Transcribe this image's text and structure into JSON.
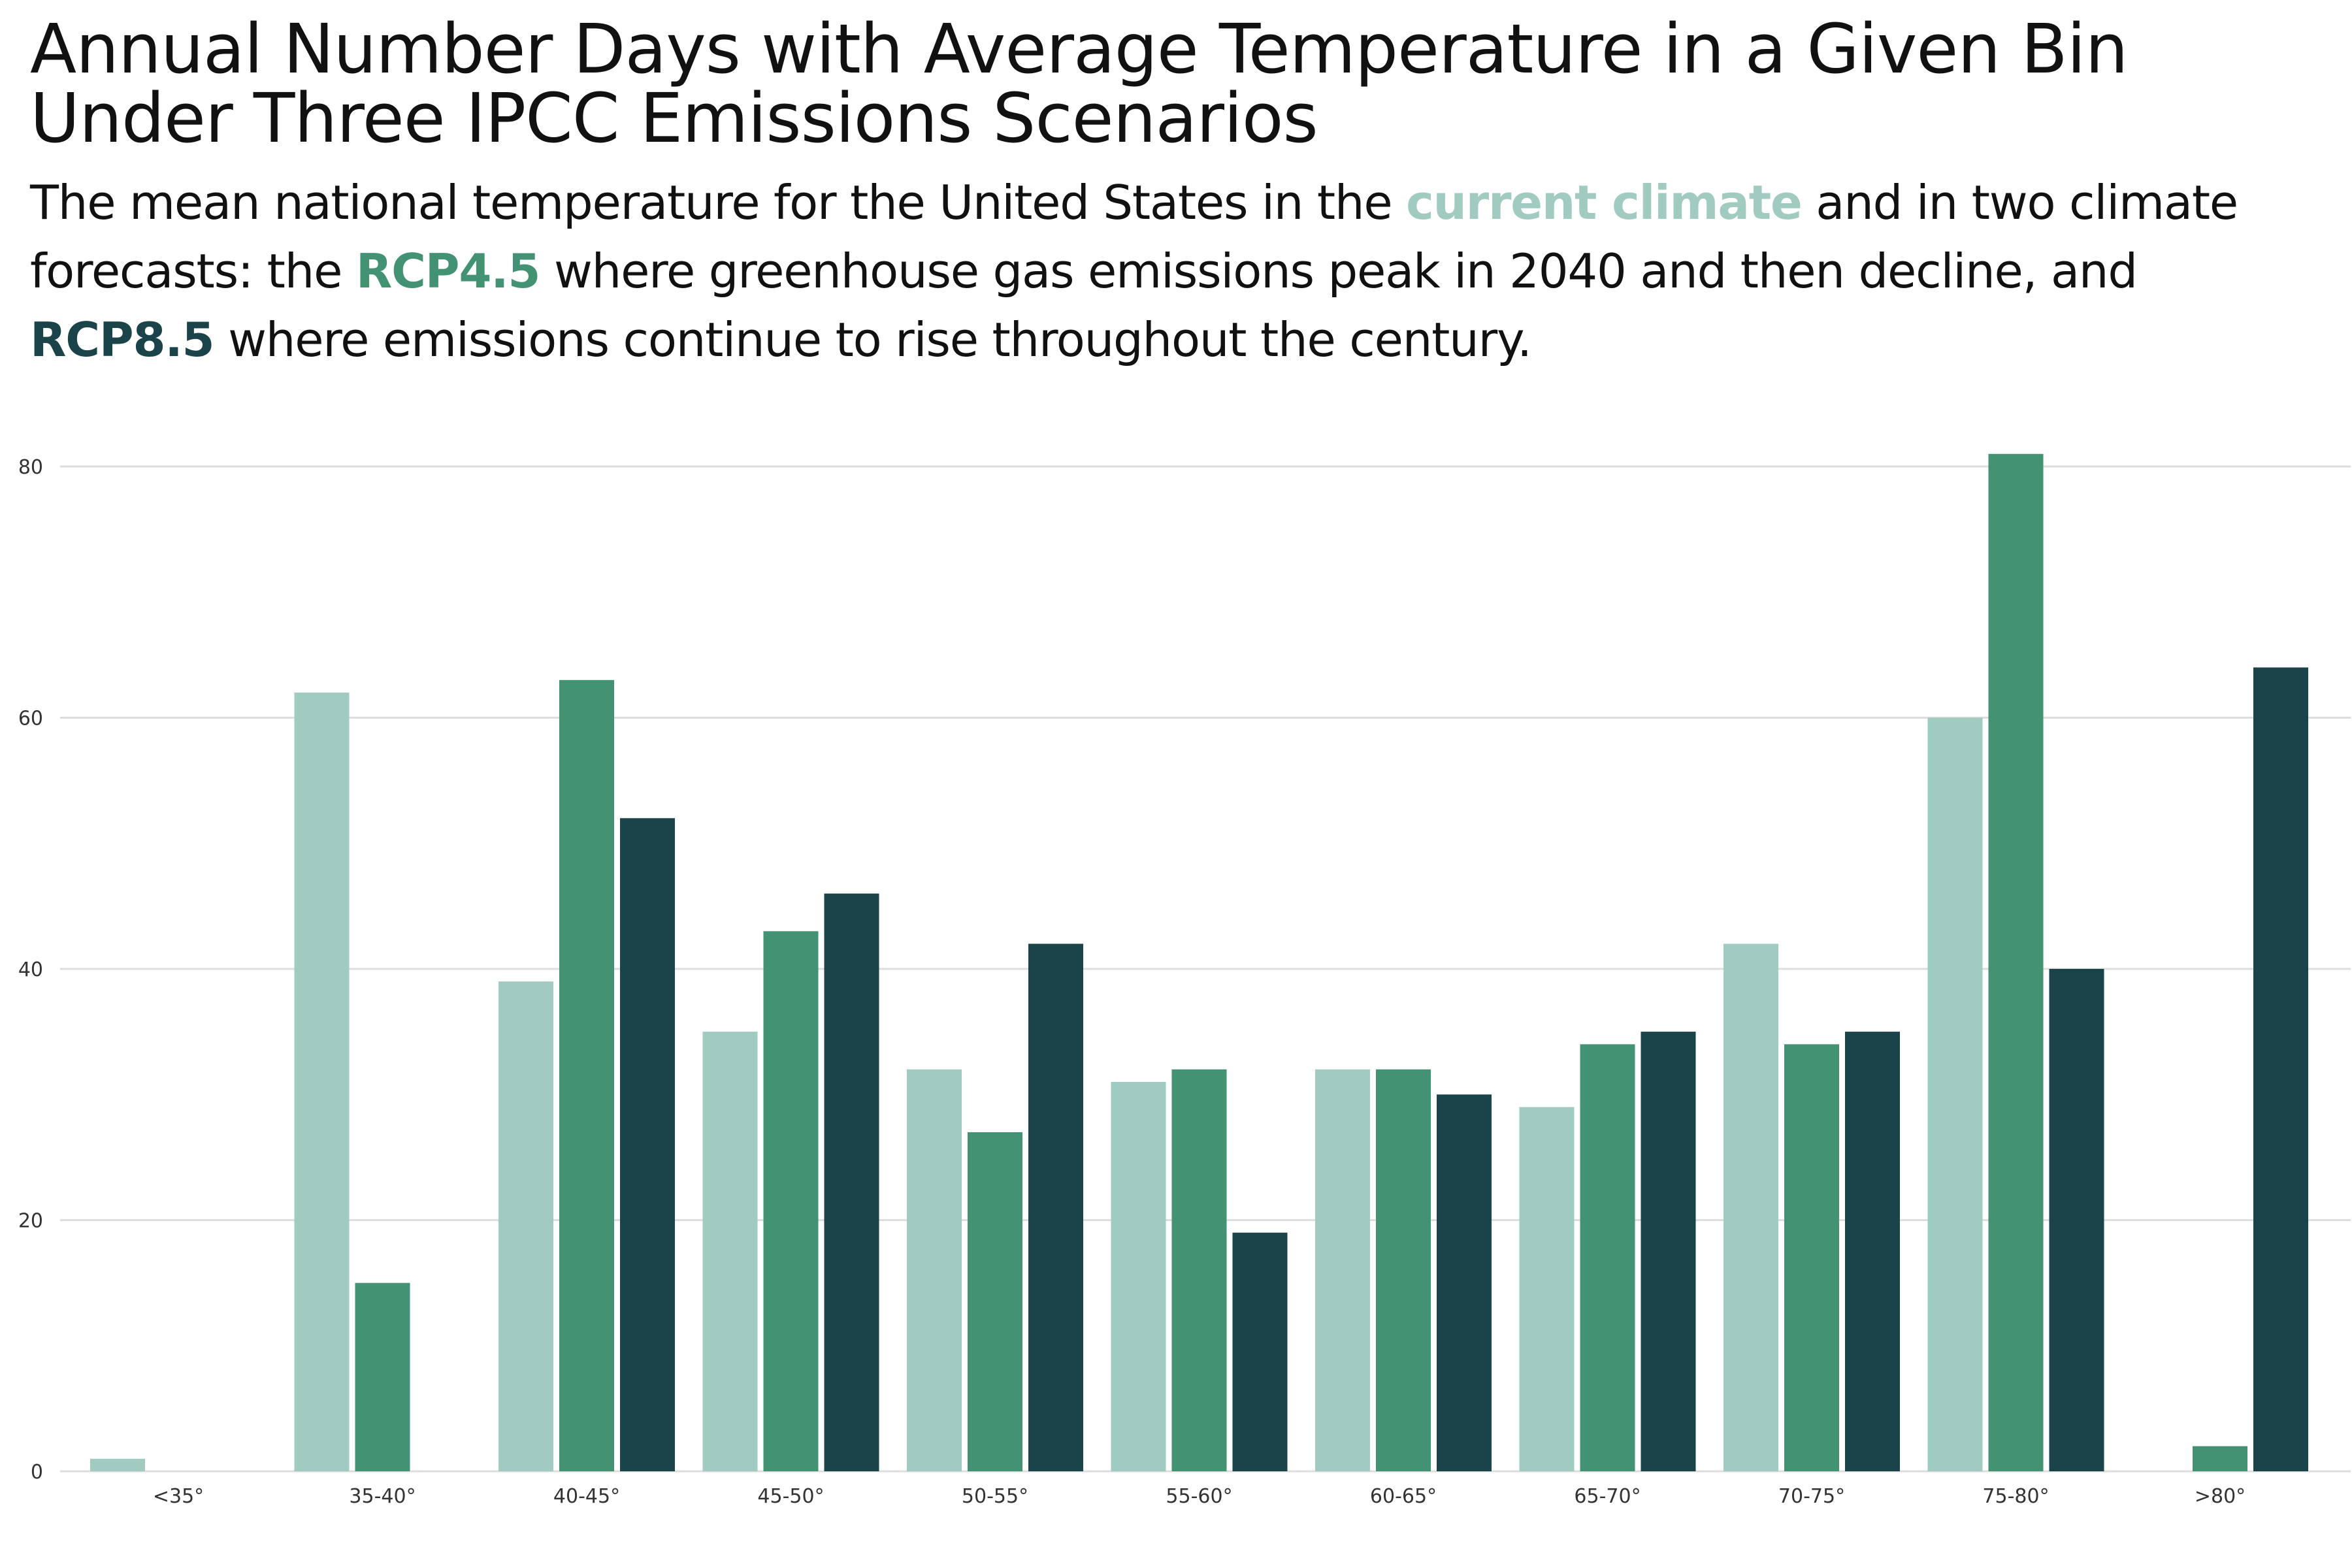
{
  "colors": {
    "current": "#a1cbc1",
    "rcp45": "#429273",
    "rcp85": "#1a434a",
    "grid": "#dddddd",
    "text": "#111111"
  },
  "header": {
    "title_line1": "Annual Number Days with Average Temperature in a Given Bin",
    "title_line2": "Under Three IPCC Emissions Scenarios",
    "sub_1": "The mean national temperature for the United States in the ",
    "sub_current": "current climate",
    "sub_2": " and in two climate forecasts: the ",
    "sub_rcp45": "RCP4.5",
    "sub_3": " where greenhouse gas emissions peak in 2040 and then decline, and ",
    "sub_rcp85": "RCP8.5",
    "sub_4": " where emissions continue to rise throughout the century."
  },
  "chart_data": {
    "type": "bar",
    "categories": [
      "<35°",
      "35-40°",
      "40-45°",
      "45-50°",
      "50-55°",
      "55-60°",
      "60-65°",
      "65-70°",
      "70-75°",
      "75-80°",
      ">80°"
    ],
    "series": [
      {
        "name": "current climate",
        "color": "#a1cbc1",
        "values": [
          1,
          62,
          39,
          35,
          32,
          31,
          32,
          29,
          42,
          60,
          0
        ]
      },
      {
        "name": "RCP4.5",
        "color": "#429273",
        "values": [
          0,
          15,
          63,
          43,
          27,
          32,
          32,
          34,
          34,
          81,
          2
        ]
      },
      {
        "name": "RCP8.5",
        "color": "#1a434a",
        "values": [
          0,
          0,
          52,
          46,
          42,
          19,
          30,
          35,
          35,
          40,
          64
        ]
      }
    ],
    "y_ticks": [
      "0",
      "20",
      "40",
      "60",
      "80"
    ],
    "ylim": [
      0,
      80
    ],
    "xlabel": "",
    "ylabel": "",
    "grid": "horizontal",
    "legend": "none (series named in subtitle)"
  }
}
